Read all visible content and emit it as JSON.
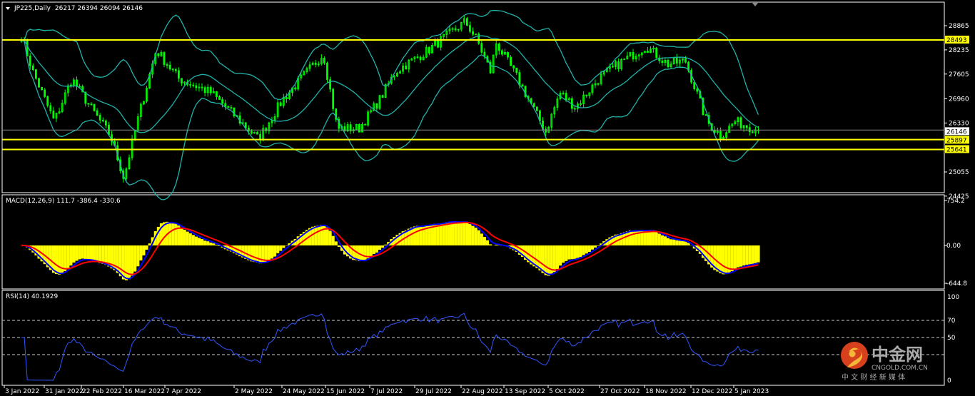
{
  "header": {
    "symbol": "JP225,Daily",
    "ohlc": "26217 26394 26094 26146"
  },
  "macd_header": "MACD(12,26,9) 111.7 -386.4 -330.6",
  "rsi_header": "RSI(14) 40.1929",
  "colors": {
    "background": "#000000",
    "candles": "#00ff00",
    "bands": "#20b2aa",
    "levels": "#ffff00",
    "macd_hist": "#ffff00",
    "macd_line": "#0000ff",
    "signal": "#ff0000",
    "rsi": "#3355ff"
  },
  "watermark": {
    "name": "中金网",
    "url": "CNGOLD.COM.CN",
    "slogan": "中 文 财 经 新 媒 体"
  },
  "chart_data": {
    "type": "candlestick",
    "price_axis": {
      "ticks": [
        "28865",
        "28235",
        "27605",
        "26960",
        "26330",
        "25055",
        "24425"
      ],
      "range": [
        24425,
        28865
      ]
    },
    "levels": [
      {
        "value": 28493,
        "label": "28493"
      },
      {
        "value": 25897,
        "label": "25897"
      },
      {
        "value": 25641,
        "label": "25641"
      }
    ],
    "current_price": {
      "value": 26146,
      "label": "26146"
    },
    "indicators": [
      "Bollinger Bands(20,2)",
      "MACD(12,26,9)",
      "RSI(14)"
    ],
    "macd_axis": {
      "ticks": [
        "754.2",
        "0.00",
        "-644.8"
      ],
      "range": [
        -644.8,
        754.2
      ]
    },
    "rsi_axis": {
      "ticks": [
        "100",
        "70",
        "50",
        "0"
      ],
      "levels": [
        70,
        50,
        30
      ],
      "range": [
        0,
        100
      ]
    },
    "x_labels": [
      "3 Jan 2022",
      "31 Jan 2022",
      "22 Feb 2022",
      "16 Mar 2022",
      "7 Apr 2022",
      "2 May 2022",
      "24 May 2022",
      "15 Jun 2022",
      "7 Jul 2022",
      "29 Jul 2022",
      "22 Aug 2022",
      "13 Sep 2022",
      "5 Oct 2022",
      "27 Oct 2022",
      "18 Nov 2022",
      "12 Dec 2022",
      "5 Jan 2023"
    ],
    "x_label_dates": [
      "2022-01-03",
      "2022-01-31",
      "2022-02-22",
      "2022-03-16",
      "2022-04-07",
      "2022-05-02",
      "2022-05-24",
      "2022-06-15",
      "2022-07-07",
      "2022-07-29",
      "2022-08-22",
      "2022-09-13",
      "2022-10-05",
      "2022-10-27",
      "2022-11-18",
      "2022-12-12",
      "2023-01-05"
    ],
    "close_path": [
      [
        "2022-01-04",
        28605
      ],
      [
        "2022-01-12",
        27675
      ],
      [
        "2022-01-27",
        26370
      ],
      [
        "2022-02-07",
        27490
      ],
      [
        "2022-02-18",
        26745
      ],
      [
        "2022-03-01",
        26000
      ],
      [
        "2022-03-08",
        24890
      ],
      [
        "2022-03-15",
        26370
      ],
      [
        "2022-03-25",
        28230
      ],
      [
        "2022-04-06",
        27490
      ],
      [
        "2022-04-18",
        27120
      ],
      [
        "2022-04-26",
        26560
      ],
      [
        "2022-05-06",
        25910
      ],
      [
        "2022-05-17",
        26930
      ],
      [
        "2022-06-06",
        28140
      ],
      [
        "2022-06-13",
        26190
      ],
      [
        "2022-06-24",
        26190
      ],
      [
        "2022-07-04",
        26930
      ],
      [
        "2022-07-12",
        27675
      ],
      [
        "2022-07-28",
        28230
      ],
      [
        "2022-08-16",
        28975
      ],
      [
        "2022-08-22",
        28510
      ],
      [
        "2022-08-29",
        27675
      ],
      [
        "2022-09-01",
        28420
      ],
      [
        "2022-09-12",
        27490
      ],
      [
        "2022-09-26",
        26100
      ],
      [
        "2022-10-03",
        27120
      ],
      [
        "2022-10-10",
        26745
      ],
      [
        "2022-10-20",
        27490
      ],
      [
        "2022-10-31",
        27955
      ],
      [
        "2022-11-11",
        28330
      ],
      [
        "2022-11-22",
        27860
      ],
      [
        "2022-12-01",
        27955
      ],
      [
        "2022-12-12",
        26370
      ],
      [
        "2022-12-20",
        26000
      ],
      [
        "2022-12-28",
        26370
      ],
      [
        "2023-01-10",
        26146
      ]
    ]
  }
}
